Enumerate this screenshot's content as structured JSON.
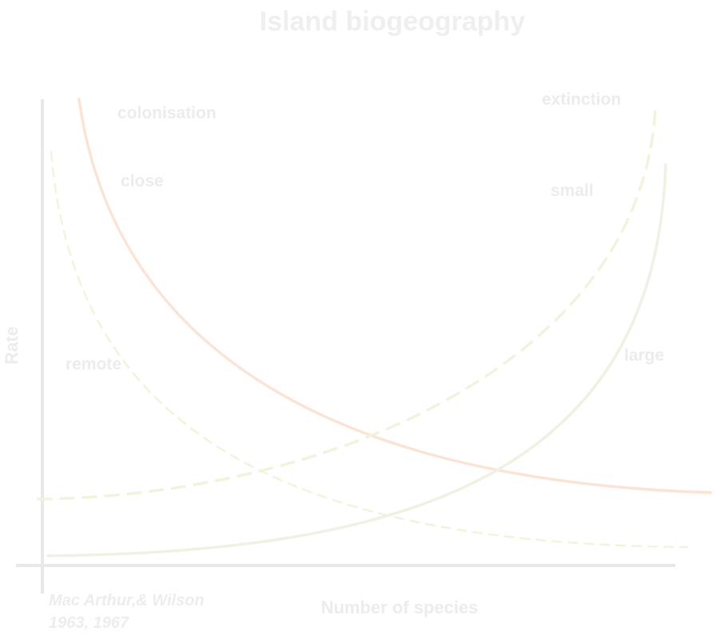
{
  "title": "Island biogeography",
  "labels": {
    "colonisation": "colonisation",
    "close": "close",
    "remote": "remote",
    "extinction": "extinction",
    "small": "small",
    "large": "large"
  },
  "axes": {
    "y_title": "Rate",
    "x_title": "Number of species"
  },
  "citation": {
    "line1": "Mac Arthur,& Wilson",
    "line2": "1963, 1967"
  },
  "colors": {
    "colonisation_close": "#fbe4d6",
    "colonisation_remote": "#f4f2df",
    "extinction_small": "#f4f2df",
    "extinction_large": "#eff1e2",
    "axis": "#e8e8e8",
    "text": "#ececec"
  }
}
